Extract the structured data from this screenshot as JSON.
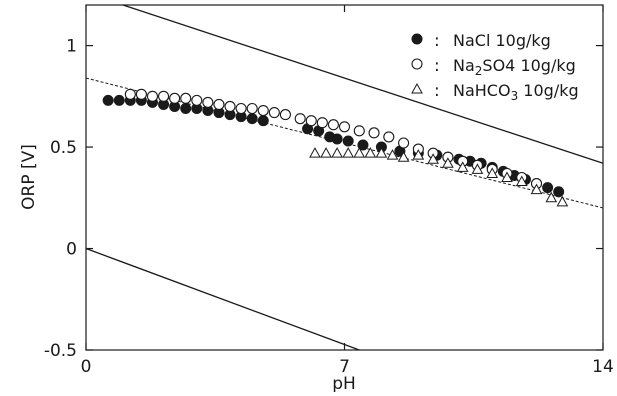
{
  "chart_data": {
    "type": "scatter",
    "xlabel": "pH",
    "ylabel": "ORP [V]",
    "xlim": [
      0,
      14
    ],
    "ylim": [
      -0.5,
      1.2
    ],
    "x_ticks": [
      {
        "value": 0,
        "label": "0"
      },
      {
        "value": 7,
        "label": "7"
      },
      {
        "value": 14,
        "label": "14"
      }
    ],
    "y_ticks": [
      {
        "value": -0.5,
        "label": "-0.5"
      },
      {
        "value": 0,
        "label": "0"
      },
      {
        "value": 0.5,
        "label": "0.5"
      },
      {
        "value": 1.0,
        "label": "1"
      }
    ],
    "legend_position": "top-right",
    "legend_separator": ":",
    "series": [
      {
        "name": "NaCl 10g/kg",
        "name_parts": {
          "pre": "NaCl 10g/kg",
          "sub": "",
          "post": ""
        },
        "marker": "filled-circle",
        "points": [
          [
            0.6,
            0.73
          ],
          [
            0.9,
            0.73
          ],
          [
            1.2,
            0.73
          ],
          [
            1.5,
            0.73
          ],
          [
            1.8,
            0.72
          ],
          [
            2.1,
            0.71
          ],
          [
            2.4,
            0.7
          ],
          [
            2.7,
            0.69
          ],
          [
            3.0,
            0.69
          ],
          [
            3.3,
            0.68
          ],
          [
            3.6,
            0.67
          ],
          [
            3.9,
            0.66
          ],
          [
            4.2,
            0.65
          ],
          [
            4.5,
            0.64
          ],
          [
            4.8,
            0.63
          ],
          [
            6.0,
            0.59
          ],
          [
            6.3,
            0.58
          ],
          [
            6.6,
            0.55
          ],
          [
            6.8,
            0.54
          ],
          [
            7.1,
            0.53
          ],
          [
            7.5,
            0.51
          ],
          [
            8.0,
            0.5
          ],
          [
            8.5,
            0.48
          ],
          [
            9.0,
            0.47
          ],
          [
            9.5,
            0.46
          ],
          [
            9.8,
            0.45
          ],
          [
            10.1,
            0.44
          ],
          [
            10.4,
            0.43
          ],
          [
            10.7,
            0.42
          ],
          [
            11.0,
            0.4
          ],
          [
            11.3,
            0.38
          ],
          [
            11.6,
            0.36
          ],
          [
            11.9,
            0.34
          ],
          [
            12.2,
            0.32
          ],
          [
            12.5,
            0.3
          ],
          [
            12.8,
            0.28
          ]
        ]
      },
      {
        "name": "Na2SO4 10g/kg",
        "name_parts": {
          "pre": "Na",
          "sub": "2",
          "post": "SO4 10g/kg"
        },
        "marker": "open-circle",
        "points": [
          [
            1.2,
            0.76
          ],
          [
            1.5,
            0.76
          ],
          [
            1.8,
            0.75
          ],
          [
            2.1,
            0.75
          ],
          [
            2.4,
            0.74
          ],
          [
            2.7,
            0.74
          ],
          [
            3.0,
            0.73
          ],
          [
            3.3,
            0.72
          ],
          [
            3.6,
            0.71
          ],
          [
            3.9,
            0.7
          ],
          [
            4.2,
            0.69
          ],
          [
            4.5,
            0.69
          ],
          [
            4.8,
            0.68
          ],
          [
            5.1,
            0.67
          ],
          [
            5.4,
            0.66
          ],
          [
            5.8,
            0.64
          ],
          [
            6.1,
            0.63
          ],
          [
            6.4,
            0.62
          ],
          [
            6.7,
            0.61
          ],
          [
            7.0,
            0.6
          ],
          [
            7.4,
            0.58
          ],
          [
            7.8,
            0.57
          ],
          [
            8.2,
            0.55
          ],
          [
            8.6,
            0.52
          ],
          [
            9.0,
            0.49
          ],
          [
            9.4,
            0.47
          ],
          [
            9.8,
            0.45
          ],
          [
            10.2,
            0.43
          ],
          [
            10.6,
            0.41
          ],
          [
            11.0,
            0.39
          ],
          [
            11.4,
            0.37
          ],
          [
            11.8,
            0.35
          ],
          [
            12.2,
            0.32
          ]
        ]
      },
      {
        "name": "NaHCO3 10g/kg",
        "name_parts": {
          "pre": "NaHCO",
          "sub": "3",
          "post": " 10g/kg"
        },
        "marker": "open-triangle",
        "points": [
          [
            6.2,
            0.47
          ],
          [
            6.5,
            0.47
          ],
          [
            6.8,
            0.47
          ],
          [
            7.1,
            0.47
          ],
          [
            7.4,
            0.47
          ],
          [
            7.7,
            0.47
          ],
          [
            8.0,
            0.47
          ],
          [
            8.3,
            0.46
          ],
          [
            8.6,
            0.45
          ],
          [
            9.0,
            0.46
          ],
          [
            9.4,
            0.44
          ],
          [
            9.8,
            0.42
          ],
          [
            10.2,
            0.4
          ],
          [
            10.6,
            0.39
          ],
          [
            11.0,
            0.37
          ],
          [
            11.4,
            0.35
          ],
          [
            11.8,
            0.33
          ],
          [
            12.2,
            0.29
          ],
          [
            12.6,
            0.25
          ],
          [
            12.9,
            0.23
          ]
        ]
      }
    ],
    "reference_lines": [
      {
        "style": "solid",
        "from": [
          1.0,
          1.2
        ],
        "to": [
          14.0,
          0.42
        ]
      },
      {
        "style": "solid",
        "from": [
          0.0,
          0.0
        ],
        "to": [
          7.4,
          -0.5
        ]
      },
      {
        "style": "dashed",
        "from": [
          0.0,
          0.84
        ],
        "to": [
          14.0,
          0.2
        ]
      }
    ]
  }
}
